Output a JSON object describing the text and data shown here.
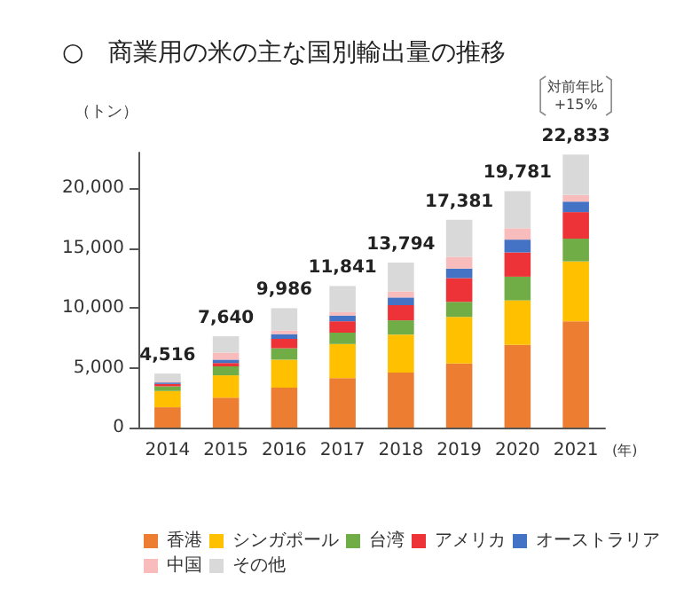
{
  "chart_data": {
    "type": "bar",
    "stacked": true,
    "title": "○　商業用の米の主な国別輸出量の推移",
    "ylabel": "（トン）",
    "xlabel": "(年)",
    "categories": [
      "2014",
      "2015",
      "2016",
      "2017",
      "2018",
      "2019",
      "2020",
      "2021"
    ],
    "series": [
      {
        "name": "香港",
        "color": "#ed7d31",
        "values": [
          1700,
          2500,
          3330,
          4130,
          4600,
          5360,
          6910,
          8890
        ]
      },
      {
        "name": "シンガポール",
        "color": "#ffc000",
        "values": [
          1360,
          1870,
          2350,
          2860,
          3180,
          3890,
          3730,
          5010
        ]
      },
      {
        "name": "台湾",
        "color": "#70ad47",
        "values": [
          390,
          750,
          950,
          950,
          1190,
          1270,
          1980,
          1900
        ]
      },
      {
        "name": "アメリカ",
        "color": "#ee3338",
        "values": [
          200,
          280,
          790,
          950,
          1270,
          1990,
          2030,
          2220
        ]
      },
      {
        "name": "オーストラリア",
        "color": "#4472c4",
        "values": [
          120,
          280,
          400,
          480,
          640,
          790,
          1070,
          880
        ]
      },
      {
        "name": "中国",
        "color": "#f8bcbc",
        "values": [
          80,
          590,
          280,
          280,
          510,
          990,
          950,
          550
        ]
      },
      {
        "name": "その他",
        "color": "#d9d9d9",
        "values": [
          666,
          1370,
          1886,
          2191,
          2404,
          3091,
          3111,
          3383
        ]
      }
    ],
    "totals": [
      "4,516",
      "7,640",
      "9,986",
      "11,841",
      "13,794",
      "17,381",
      "19,781",
      "22,833"
    ],
    "annotations": [
      "対前年比\n+15%"
    ],
    "ylim": [
      0,
      23000
    ],
    "yticks": [
      {
        "value": 0,
        "label": "0"
      },
      {
        "value": 5000,
        "label": "5,000"
      },
      {
        "value": 10000,
        "label": "10,000"
      },
      {
        "value": 15000,
        "label": "15,000"
      },
      {
        "value": 20000,
        "label": "20,000"
      }
    ],
    "grid": false,
    "legend": "bottom"
  }
}
